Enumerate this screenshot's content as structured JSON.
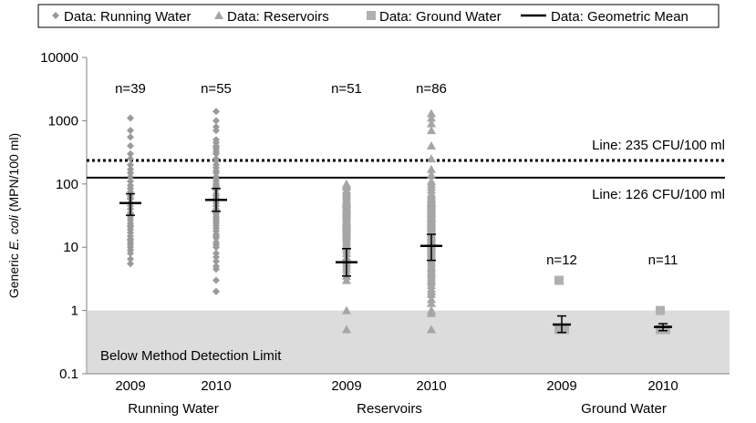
{
  "chart_data": {
    "type": "scatter",
    "y_scale": "log",
    "ylim": [
      0.1,
      10000
    ],
    "ylabel_prefix": "Generic ",
    "ylabel_italic": "E. coli",
    "ylabel_suffix": " (MPN/100 ml)",
    "y_ticks": [
      "0.1",
      "1",
      "10",
      "100",
      "1000",
      "10000"
    ],
    "legend": [
      {
        "label": "Data:  Running Water",
        "marker": "diamond"
      },
      {
        "label": "Data:  Reservoirs",
        "marker": "triangle"
      },
      {
        "label": "Data:  Ground Water",
        "marker": "square"
      },
      {
        "label": "Data:  Geometric Mean",
        "marker": "line"
      }
    ],
    "groups": [
      {
        "name": "Running Water",
        "year": "2009",
        "n_label": "n=39",
        "marker": "diamond",
        "values": [
          1100,
          700,
          550,
          400,
          300,
          250,
          200,
          170,
          150,
          130,
          110,
          95,
          85,
          75,
          65,
          58,
          50,
          45,
          40,
          35,
          30,
          27,
          24,
          21,
          19,
          17,
          15,
          13,
          12,
          11,
          10,
          9,
          8,
          6.5,
          5.5,
          13.5,
          22,
          33,
          60
        ],
        "gm": 50,
        "gm_low": 32,
        "gm_high": 70
      },
      {
        "name": "Running Water",
        "year": "2010",
        "n_label": "n=55",
        "marker": "diamond",
        "values": [
          1400,
          1000,
          800,
          700,
          500,
          450,
          400,
          380,
          350,
          320,
          300,
          250,
          230,
          200,
          180,
          160,
          150,
          130,
          120,
          110,
          100,
          95,
          90,
          80,
          70,
          65,
          60,
          55,
          50,
          45,
          40,
          38,
          35,
          33,
          30,
          28,
          26,
          24,
          22,
          20,
          18,
          16,
          15,
          14,
          12,
          11,
          10,
          8,
          7,
          6,
          5,
          4.5,
          3,
          2,
          2
        ],
        "gm": 56,
        "gm_low": 37,
        "gm_high": 85
      },
      {
        "name": "Reservoirs",
        "year": "2009",
        "n_label": "n=51",
        "marker": "triangle",
        "values": [
          100,
          95,
          90,
          80,
          75,
          70,
          65,
          60,
          55,
          52,
          50,
          48,
          45,
          42,
          40,
          38,
          36,
          34,
          32,
          30,
          28,
          26,
          25,
          24,
          23,
          22,
          21,
          20,
          19,
          18,
          17,
          16,
          15,
          14,
          13,
          12,
          11,
          10,
          9,
          8,
          7,
          6.5,
          6,
          5.5,
          5,
          4.5,
          4,
          3.5,
          3,
          1,
          0.5
        ],
        "gm": 5.8,
        "gm_low": 3.5,
        "gm_high": 9.5
      },
      {
        "name": "Reservoirs",
        "year": "2010",
        "n_label": "n=86",
        "marker": "triangle",
        "values": [
          1300,
          1100,
          900,
          700,
          400,
          250,
          170,
          140,
          110,
          100,
          90,
          80,
          70,
          65,
          60,
          58,
          55,
          52,
          50,
          48,
          46,
          44,
          42,
          40,
          38,
          36,
          35,
          34,
          32,
          30,
          29,
          28,
          27,
          26,
          25,
          24,
          23,
          22,
          21,
          20,
          19,
          18,
          17,
          16,
          15,
          14.5,
          14,
          13,
          12.5,
          12,
          11.5,
          11,
          10.5,
          10,
          9.5,
          9,
          8.5,
          8,
          7.5,
          7,
          6.5,
          6,
          5.5,
          5,
          4.7,
          4.3,
          4,
          3.7,
          3.4,
          3.1,
          2.8,
          2.5,
          2.2,
          2,
          2,
          1.8,
          1.5,
          1.3,
          1,
          1,
          0.9,
          0.5,
          0.5,
          3,
          7,
          13
        ],
        "gm": 10.5,
        "gm_low": 6.2,
        "gm_high": 16
      },
      {
        "name": "Ground Water",
        "year": "2009",
        "n_label": "n=12",
        "marker": "square",
        "values": [
          3,
          0.5,
          0.5,
          0.5,
          0.5,
          0.5,
          0.5,
          0.5,
          0.5,
          0.5,
          0.5,
          0.5
        ],
        "gm": 0.6,
        "gm_low": 0.45,
        "gm_high": 0.82
      },
      {
        "name": "Ground Water",
        "year": "2010",
        "n_label": "n=11",
        "marker": "square",
        "values": [
          1,
          0.5,
          0.5,
          0.5,
          0.5,
          0.5,
          0.5,
          0.5,
          0.5,
          0.5,
          0.5
        ],
        "gm": 0.55,
        "gm_low": 0.48,
        "gm_high": 0.62
      }
    ],
    "categories": [
      "Running Water",
      "Reservoirs",
      "Ground Water"
    ],
    "reference_lines": [
      {
        "value": 235,
        "label": "Line:  235  CFU/100 ml",
        "style": "dotted"
      },
      {
        "value": 126,
        "label": "Line:  126  CFU/100 ml",
        "style": "solid"
      }
    ],
    "shaded_region": {
      "from": 0.1,
      "to": 1,
      "label": "Below Method Detection Limit"
    },
    "colors": {
      "diamond": "#9a9a9a",
      "triangle": "#a6a6a6",
      "square": "#b0b0b0",
      "mean": "#000000",
      "shade": "#dcdcdc",
      "axis": "#7f7f7f"
    }
  }
}
